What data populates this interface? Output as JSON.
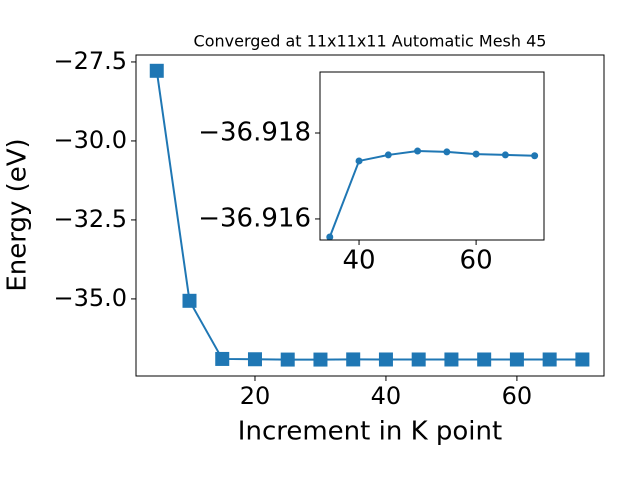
{
  "chart_data": [
    {
      "type": "line",
      "title": "Converged at 11x11x11 Automatic Mesh 45",
      "x_label": "Increment in K point",
      "y_label": "Energy (eV)",
      "x": [
        5,
        10,
        15,
        20,
        25,
        30,
        35,
        40,
        45,
        50,
        55,
        60,
        65,
        70
      ],
      "series": [
        {
          "name": "Energy",
          "color": "#1f77b4",
          "marker": "square",
          "values": [
            -27.78,
            -35.06,
            -36.9,
            -36.91,
            -36.92,
            -36.92,
            -36.91558,
            -36.91735,
            -36.91749,
            -36.91758,
            -36.91756,
            -36.91751,
            -36.91749,
            -36.91747
          ]
        }
      ],
      "xlim": [
        1.83,
        73.3
      ],
      "ylim": [
        -37.44,
        -27.28
      ],
      "xticks": [
        20,
        40,
        60
      ],
      "yticks": [
        {
          "value": -35,
          "label": "−35.0"
        },
        {
          "value": -32.5,
          "label": "−32.5"
        },
        {
          "value": -30,
          "label": "−30.0"
        },
        {
          "value": -27.5,
          "label": "−27.5"
        }
      ]
    },
    {
      "type": "line",
      "x": [
        35,
        40,
        45,
        50,
        55,
        60,
        65,
        70
      ],
      "series": [
        {
          "name": "Energy",
          "color": "#1f77b4",
          "marker": "circle",
          "values": [
            -36.91558,
            -36.91735,
            -36.91749,
            -36.91758,
            -36.91756,
            -36.91751,
            -36.91749,
            -36.91747
          ]
        }
      ],
      "xlim": [
        33.33,
        71.6
      ],
      "ylim": [
        -36.91551,
        -36.91942
      ],
      "xticks": [
        40,
        60
      ],
      "yticks": [
        {
          "value": -36.918,
          "label": "−36.918"
        },
        {
          "value": -36.916,
          "label": "−36.916"
        }
      ]
    }
  ]
}
